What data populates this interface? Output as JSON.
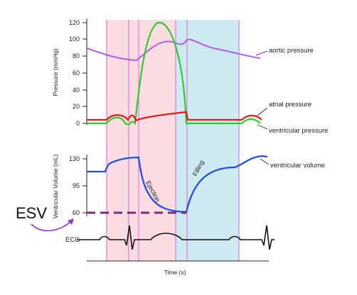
{
  "pressure_axis": {
    "title": "Pressure (mmHg)",
    "ticks": [
      "120",
      "100",
      "80",
      "60",
      "40",
      "20",
      "0"
    ]
  },
  "volume_axis": {
    "title": "Ventricular Volume (mL)",
    "ticks": [
      "130",
      "95",
      "60"
    ]
  },
  "time_axis": {
    "title": "Time (s)"
  },
  "labels": {
    "aortic": "aortic pressure",
    "atrial": "atrial pressure",
    "ventricular_pressure": "ventricular pressure",
    "ventricular_volume": "ventricular volume",
    "ecg": "ECG",
    "ejection": "Ejection",
    "filling": "Filling",
    "esv": "ESV"
  },
  "colors": {
    "aortic": "#b25ce0",
    "atrial": "#e01a1a",
    "ventricular_pressure": "#2fcc2f",
    "volume": "#2250d8",
    "esv_line": "#7a2a7a",
    "systole_band": "#fcdce3",
    "filling_band": "#cdeaf0",
    "phase_lines": "#e07ad8"
  }
}
